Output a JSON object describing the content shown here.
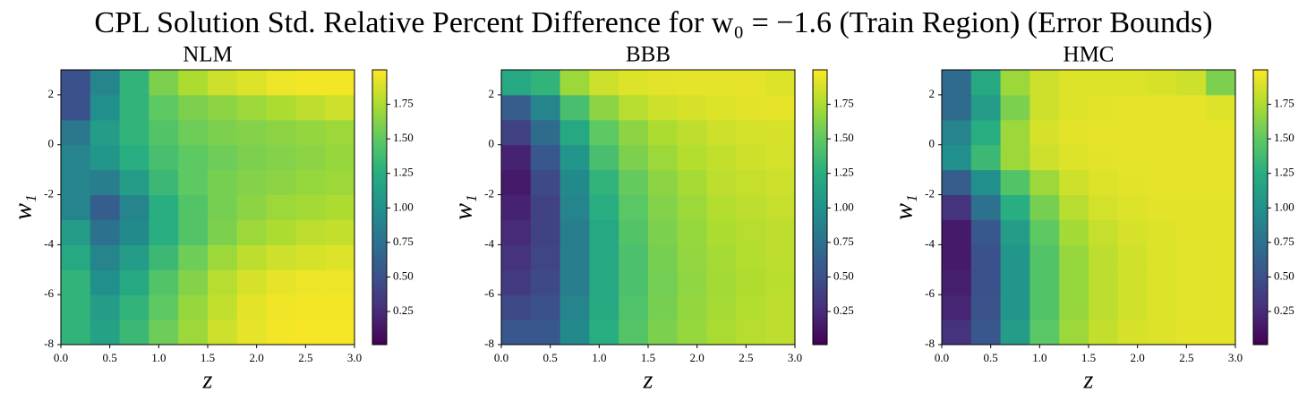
{
  "title": "CPL Solution Std. Relative Percent Difference for w₀ = −1.6 (Train Region) (Error Bounds)",
  "chart_data": [
    {
      "type": "heatmap",
      "title": "NLM",
      "xlabel": "z",
      "ylabel": "w₁",
      "colormap": "viridis",
      "xbins": [
        0,
        0.3,
        0.6,
        0.9,
        1.2,
        1.5,
        1.8,
        2.1,
        2.4,
        2.7,
        3.0
      ],
      "ybins": [
        -8,
        -7,
        -6,
        -5,
        -4,
        -3,
        -2,
        -1,
        0,
        1,
        2,
        3
      ],
      "values": [
        [
          1.3,
          1.15,
          1.35,
          1.55,
          1.7,
          1.85,
          1.93,
          1.97,
          1.98,
          1.98
        ],
        [
          1.3,
          1.1,
          1.3,
          1.5,
          1.68,
          1.82,
          1.92,
          1.96,
          1.97,
          1.97
        ],
        [
          1.3,
          1.0,
          1.2,
          1.45,
          1.62,
          1.78,
          1.88,
          1.93,
          1.95,
          1.95
        ],
        [
          1.2,
          0.9,
          1.1,
          1.35,
          1.55,
          1.7,
          1.8,
          1.85,
          1.88,
          1.9
        ],
        [
          1.1,
          0.75,
          0.95,
          1.25,
          1.45,
          1.6,
          1.7,
          1.75,
          1.8,
          1.82
        ],
        [
          0.9,
          0.6,
          0.9,
          1.25,
          1.45,
          1.58,
          1.65,
          1.7,
          1.72,
          1.75
        ],
        [
          0.9,
          0.85,
          1.1,
          1.35,
          1.5,
          1.58,
          1.62,
          1.65,
          1.68,
          1.7
        ],
        [
          0.9,
          1.05,
          1.25,
          1.4,
          1.5,
          1.55,
          1.6,
          1.62,
          1.65,
          1.68
        ],
        [
          0.8,
          1.1,
          1.3,
          1.45,
          1.55,
          1.6,
          1.62,
          1.65,
          1.67,
          1.7
        ],
        [
          0.5,
          1.0,
          1.3,
          1.5,
          1.6,
          1.65,
          1.7,
          1.75,
          1.8,
          1.85
        ],
        [
          0.5,
          0.9,
          1.3,
          1.6,
          1.75,
          1.85,
          1.9,
          1.95,
          1.97,
          1.97
        ]
      ],
      "xlim": [
        0,
        3.0
      ],
      "ylim": [
        -8,
        3
      ],
      "clim": [
        0.01,
        2.0
      ],
      "xticks": [
        {
          "value": 0,
          "label": "0.0"
        },
        {
          "value": 0.5,
          "label": "0.5"
        },
        {
          "value": 1,
          "label": "1.0"
        },
        {
          "value": 1.5,
          "label": "1.5"
        },
        {
          "value": 2,
          "label": "2.0"
        },
        {
          "value": 2.5,
          "label": "2.5"
        },
        {
          "value": 3,
          "label": "3.0"
        }
      ],
      "yticks": [
        -8,
        -6,
        -4,
        -2,
        0,
        2
      ],
      "cticks": [
        0.25,
        {
          "value": 0.5,
          "label": "0.50"
        },
        0.75,
        {
          "value": 1,
          "label": "1.00"
        },
        1.25,
        {
          "value": 1.5,
          "label": "1.50"
        },
        1.75
      ]
    },
    {
      "type": "heatmap",
      "title": "BBB",
      "xlabel": "z",
      "ylabel": "w₁",
      "colormap": "viridis",
      "xbins": [
        0,
        0.3,
        0.6,
        0.9,
        1.2,
        1.5,
        1.8,
        2.1,
        2.4,
        2.7,
        3.0
      ],
      "ybins": [
        -8,
        -7,
        -6,
        -5,
        -4,
        -3,
        -2,
        -1,
        0,
        1,
        2,
        3
      ],
      "values": [
        [
          0.55,
          0.55,
          0.95,
          1.25,
          1.46,
          1.6,
          1.68,
          1.74,
          1.78,
          1.8
        ],
        [
          0.45,
          0.5,
          0.9,
          1.22,
          1.44,
          1.58,
          1.67,
          1.73,
          1.77,
          1.8
        ],
        [
          0.35,
          0.45,
          0.85,
          1.2,
          1.42,
          1.57,
          1.66,
          1.72,
          1.76,
          1.79
        ],
        [
          0.3,
          0.42,
          0.85,
          1.2,
          1.42,
          1.58,
          1.67,
          1.73,
          1.77,
          1.8
        ],
        [
          0.25,
          0.4,
          0.85,
          1.2,
          1.45,
          1.6,
          1.68,
          1.75,
          1.78,
          1.8
        ],
        [
          0.2,
          0.4,
          0.9,
          1.25,
          1.48,
          1.62,
          1.7,
          1.77,
          1.8,
          1.83
        ],
        [
          0.15,
          0.45,
          0.95,
          1.3,
          1.52,
          1.65,
          1.73,
          1.8,
          1.83,
          1.85
        ],
        [
          0.2,
          0.55,
          1.05,
          1.4,
          1.6,
          1.7,
          1.77,
          1.82,
          1.85,
          1.87
        ],
        [
          0.4,
          0.7,
          1.2,
          1.5,
          1.65,
          1.75,
          1.8,
          1.85,
          1.87,
          1.88
        ],
        [
          0.6,
          0.9,
          1.4,
          1.65,
          1.78,
          1.85,
          1.88,
          1.9,
          1.92,
          1.93
        ],
        [
          1.2,
          1.3,
          1.7,
          1.85,
          1.9,
          1.92,
          1.93,
          1.93,
          1.93,
          1.9
        ]
      ],
      "xlim": [
        0,
        3.0
      ],
      "ylim": [
        -8,
        3
      ],
      "clim": [
        0.01,
        2.0
      ],
      "xticks": [
        {
          "value": 0,
          "label": "0.0"
        },
        {
          "value": 0.5,
          "label": "0.5"
        },
        {
          "value": 1,
          "label": "1.0"
        },
        {
          "value": 1.5,
          "label": "1.5"
        },
        {
          "value": 2,
          "label": "2.0"
        },
        {
          "value": 2.5,
          "label": "2.5"
        },
        {
          "value": 3,
          "label": "3.0"
        }
      ],
      "yticks": [
        -8,
        -6,
        -4,
        -2,
        0,
        2
      ],
      "cticks": [
        0.25,
        {
          "value": 0.5,
          "label": "0.50"
        },
        0.75,
        {
          "value": 1,
          "label": "1.00"
        },
        1.25,
        {
          "value": 1.5,
          "label": "1.50"
        },
        1.75
      ]
    },
    {
      "type": "heatmap",
      "title": "HMC",
      "xlabel": "z",
      "ylabel": "w₁",
      "colormap": "viridis",
      "xbins": [
        0,
        0.3,
        0.6,
        0.9,
        1.2,
        1.5,
        1.8,
        2.1,
        2.4,
        2.7,
        3.0
      ],
      "ybins": [
        -8,
        -7,
        -6,
        -5,
        -4,
        -3,
        -2,
        -1,
        0,
        1,
        2,
        3
      ],
      "values": [
        [
          0.3,
          0.55,
          1.1,
          1.48,
          1.7,
          1.82,
          1.88,
          1.9,
          1.92,
          1.92
        ],
        [
          0.22,
          0.52,
          1.05,
          1.45,
          1.68,
          1.8,
          1.86,
          1.9,
          1.91,
          1.92
        ],
        [
          0.18,
          0.5,
          1.05,
          1.45,
          1.68,
          1.8,
          1.86,
          1.9,
          1.91,
          1.92
        ],
        [
          0.15,
          0.5,
          1.05,
          1.45,
          1.68,
          1.8,
          1.86,
          1.9,
          1.91,
          1.92
        ],
        [
          0.15,
          0.55,
          1.1,
          1.5,
          1.72,
          1.83,
          1.88,
          1.9,
          1.92,
          1.92
        ],
        [
          0.3,
          0.75,
          1.25,
          1.58,
          1.78,
          1.87,
          1.9,
          1.92,
          1.92,
          1.92
        ],
        [
          0.6,
          1.0,
          1.45,
          1.7,
          1.85,
          1.9,
          1.92,
          1.93,
          1.93,
          1.93
        ],
        [
          1.0,
          1.35,
          1.7,
          1.85,
          1.9,
          1.92,
          1.93,
          1.93,
          1.93,
          1.93
        ],
        [
          0.9,
          1.25,
          1.7,
          1.88,
          1.92,
          1.93,
          1.93,
          1.93,
          1.93,
          1.93
        ],
        [
          0.7,
          1.1,
          1.6,
          1.85,
          1.9,
          1.92,
          1.93,
          1.93,
          1.93,
          1.9
        ],
        [
          0.7,
          1.2,
          1.7,
          1.85,
          1.9,
          1.9,
          1.9,
          1.88,
          1.85,
          1.6
        ]
      ],
      "xlim": [
        0,
        3.0
      ],
      "ylim": [
        -8,
        3
      ],
      "clim": [
        0.01,
        2.0
      ],
      "xticks": [
        {
          "value": 0,
          "label": "0.0"
        },
        {
          "value": 0.5,
          "label": "0.5"
        },
        {
          "value": 1,
          "label": "1.0"
        },
        {
          "value": 1.5,
          "label": "1.5"
        },
        {
          "value": 2,
          "label": "2.0"
        },
        {
          "value": 2.5,
          "label": "2.5"
        },
        {
          "value": 3,
          "label": "3.0"
        }
      ],
      "yticks": [
        -8,
        -6,
        -4,
        -2,
        0,
        2
      ],
      "cticks": [
        0.25,
        {
          "value": 0.5,
          "label": "0.50"
        },
        0.75,
        {
          "value": 1,
          "label": "1.00"
        },
        1.25,
        {
          "value": 1.5,
          "label": "1.50"
        },
        1.75
      ]
    }
  ]
}
